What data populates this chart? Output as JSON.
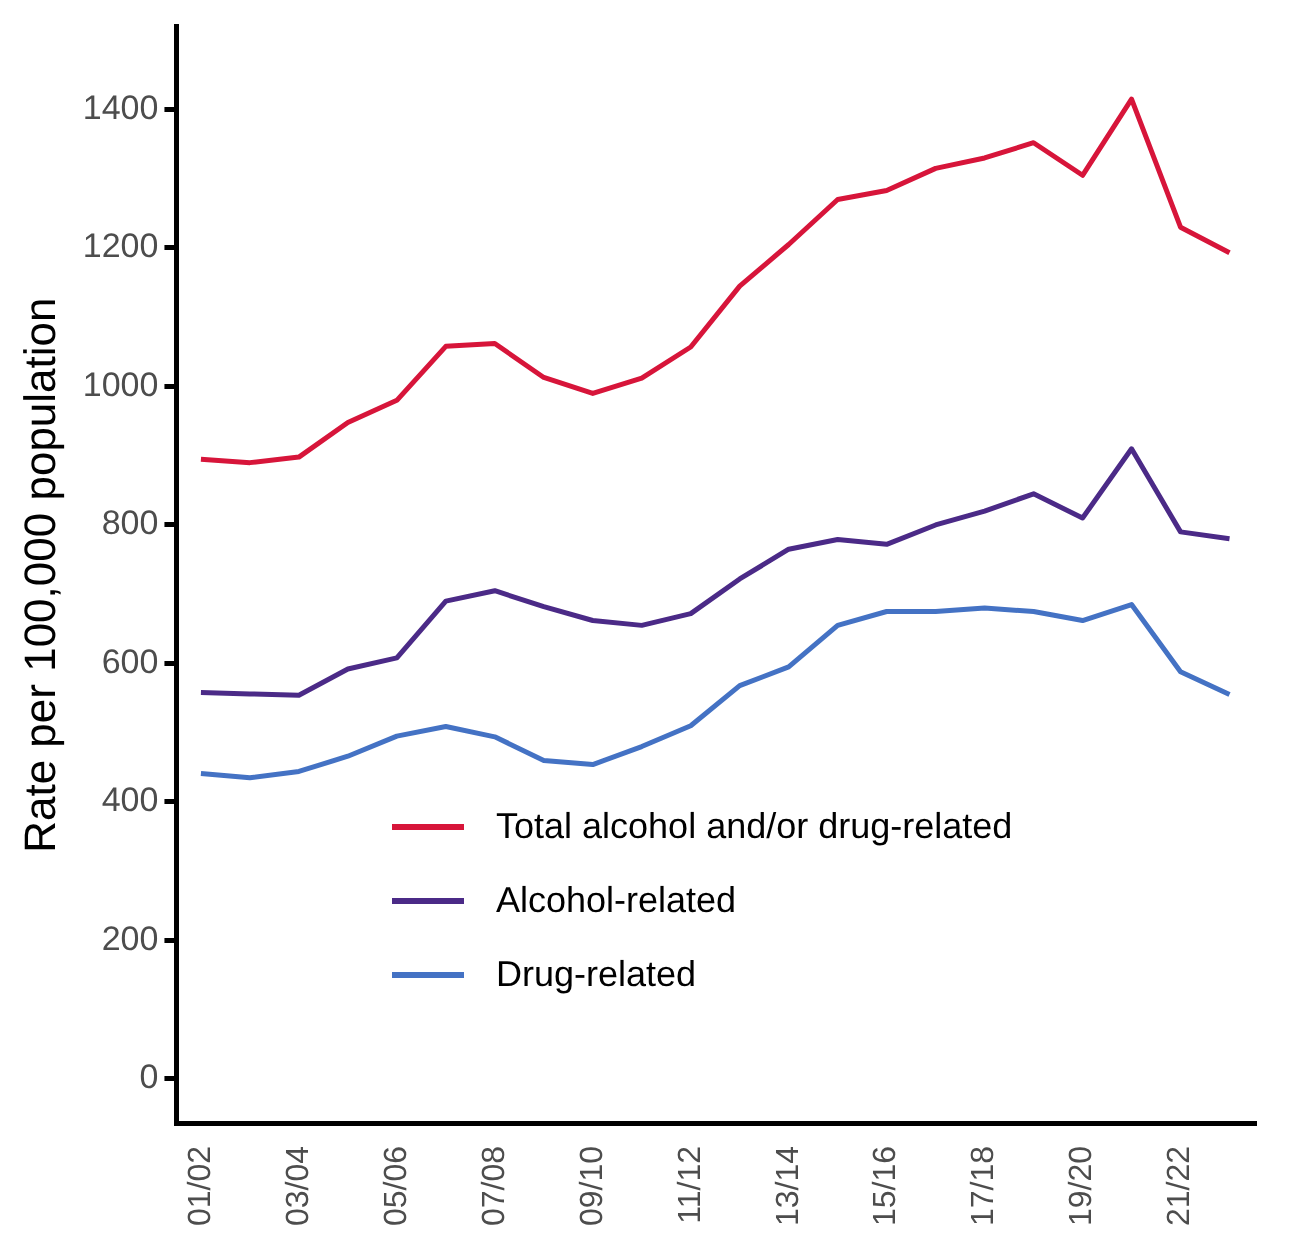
{
  "chart_data": {
    "type": "line",
    "ylabel": "Rate per 100,000 population",
    "categories": [
      "01/02",
      null,
      "03/04",
      null,
      "05/06",
      null,
      "07/08",
      null,
      "09/10",
      null,
      "11/12",
      null,
      "13/14",
      null,
      "15/16",
      null,
      "17/18",
      null,
      "19/20",
      null,
      "21/22",
      null
    ],
    "series": [
      {
        "name": "Total alcohol and/or drug-related",
        "color": "#d7153a",
        "values": [
          895,
          890,
          898,
          948,
          980,
          1058,
          1062,
          1013,
          990,
          1012,
          1057,
          1145,
          1205,
          1270,
          1283,
          1315,
          1330,
          1352,
          1305,
          1415,
          1230,
          1193
        ]
      },
      {
        "name": "Alcohol-related",
        "color": "#4b2a87",
        "values": [
          558,
          556,
          554,
          592,
          608,
          690,
          705,
          682,
          662,
          655,
          672,
          722,
          765,
          779,
          772,
          800,
          820,
          845,
          810,
          910,
          790,
          780
        ]
      },
      {
        "name": "Drug-related",
        "color": "#4472c4",
        "values": [
          441,
          435,
          444,
          466,
          495,
          509,
          494,
          460,
          454,
          480,
          510,
          568,
          595,
          655,
          675,
          675,
          680,
          675,
          662,
          685,
          588,
          555
        ]
      }
    ],
    "ylim": [
      -65,
      1520
    ],
    "yticks": [
      0,
      200,
      400,
      600,
      800,
      1000,
      1200,
      1400
    ],
    "grid": false,
    "legend": "bottom",
    "marker": "none",
    "line_style": "solid"
  }
}
